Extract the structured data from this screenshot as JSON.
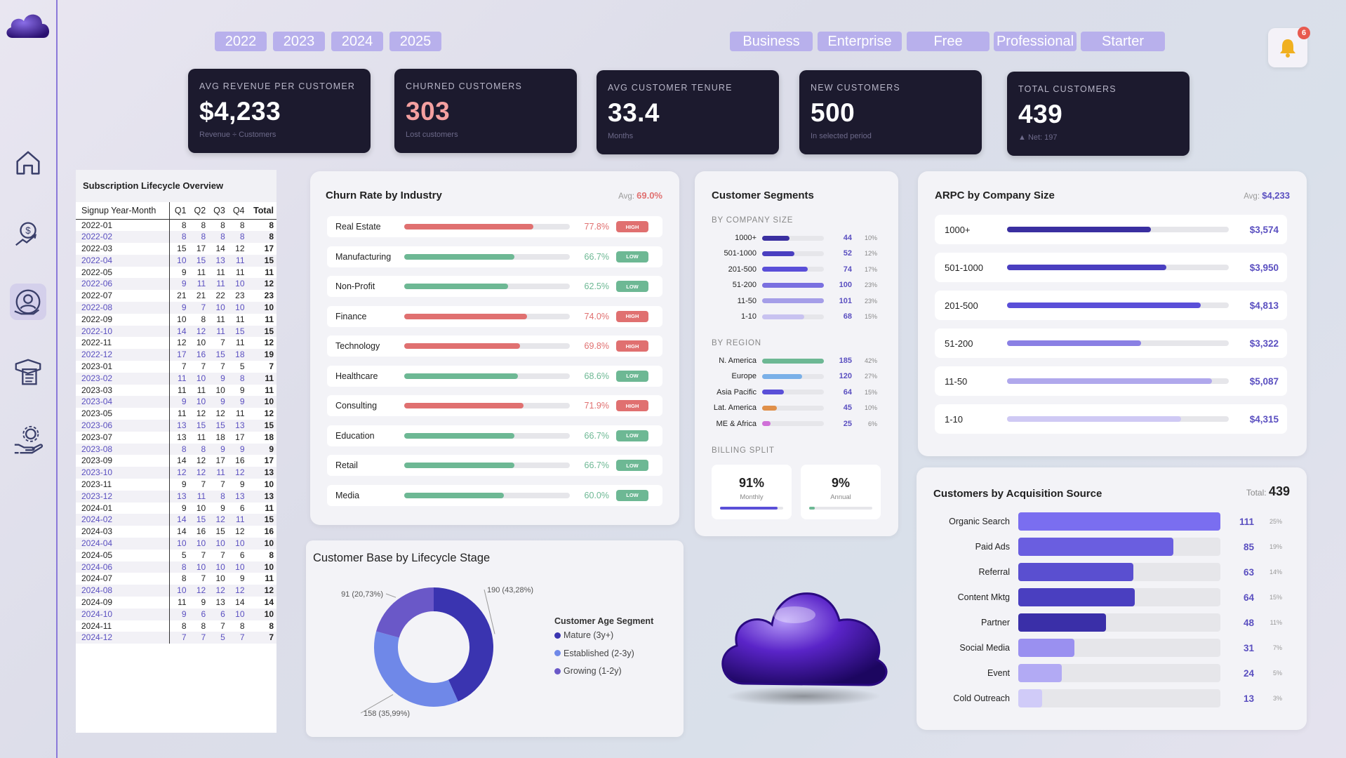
{
  "filters": {
    "years": [
      "2022",
      "2023",
      "2024",
      "2025"
    ],
    "plans": [
      "Business",
      "Enterprise",
      "Free",
      "Professional",
      "Starter"
    ]
  },
  "notifications": {
    "count": "6"
  },
  "kpis": [
    {
      "label": "AVG REVENUE PER CUSTOMER",
      "value": "$4,233",
      "sub": "Revenue ÷ Customers",
      "color": "#ffffff"
    },
    {
      "label": "CHURNED CUSTOMERS",
      "value": "303",
      "sub": "Lost customers",
      "color": "#f4a0a0"
    },
    {
      "label": "AVG CUSTOMER TENURE",
      "value": "33.4",
      "sub": "Months",
      "color": "#ffffff"
    },
    {
      "label": "NEW CUSTOMERS",
      "value": "500",
      "sub": "In selected period",
      "color": "#ffffff"
    },
    {
      "label": "TOTAL CUSTOMERS",
      "value": "439",
      "sub": "▲ Net: 197",
      "color": "#ffffff"
    }
  ],
  "lifecycle_table": {
    "title": "Subscription Lifecycle Overview",
    "headers": [
      "Signup Year-Month",
      "Q1",
      "Q2",
      "Q3",
      "Q4",
      "Total"
    ],
    "rows": [
      [
        "2022-01",
        "8",
        "8",
        "8",
        "8",
        "8"
      ],
      [
        "2022-02",
        "8",
        "8",
        "8",
        "8",
        "8"
      ],
      [
        "2022-03",
        "15",
        "17",
        "14",
        "12",
        "17"
      ],
      [
        "2022-04",
        "10",
        "15",
        "13",
        "11",
        "15"
      ],
      [
        "2022-05",
        "9",
        "11",
        "11",
        "11",
        "11"
      ],
      [
        "2022-06",
        "9",
        "11",
        "11",
        "10",
        "12"
      ],
      [
        "2022-07",
        "21",
        "21",
        "22",
        "23",
        "23"
      ],
      [
        "2022-08",
        "9",
        "7",
        "10",
        "10",
        "10"
      ],
      [
        "2022-09",
        "10",
        "8",
        "11",
        "11",
        "11"
      ],
      [
        "2022-10",
        "14",
        "12",
        "11",
        "15",
        "15"
      ],
      [
        "2022-11",
        "12",
        "10",
        "7",
        "11",
        "12"
      ],
      [
        "2022-12",
        "17",
        "16",
        "15",
        "18",
        "19"
      ],
      [
        "2023-01",
        "7",
        "7",
        "7",
        "5",
        "7"
      ],
      [
        "2023-02",
        "11",
        "10",
        "9",
        "8",
        "11"
      ],
      [
        "2023-03",
        "11",
        "11",
        "10",
        "9",
        "11"
      ],
      [
        "2023-04",
        "9",
        "10",
        "9",
        "9",
        "10"
      ],
      [
        "2023-05",
        "11",
        "12",
        "12",
        "11",
        "12"
      ],
      [
        "2023-06",
        "13",
        "15",
        "15",
        "13",
        "15"
      ],
      [
        "2023-07",
        "13",
        "11",
        "18",
        "17",
        "18"
      ],
      [
        "2023-08",
        "8",
        "8",
        "9",
        "9",
        "9"
      ],
      [
        "2023-09",
        "14",
        "12",
        "17",
        "16",
        "17"
      ],
      [
        "2023-10",
        "12",
        "12",
        "11",
        "12",
        "13"
      ],
      [
        "2023-11",
        "9",
        "7",
        "7",
        "9",
        "10"
      ],
      [
        "2023-12",
        "13",
        "11",
        "8",
        "13",
        "13"
      ],
      [
        "2024-01",
        "9",
        "10",
        "9",
        "6",
        "11"
      ],
      [
        "2024-02",
        "14",
        "15",
        "12",
        "11",
        "15"
      ],
      [
        "2024-03",
        "14",
        "16",
        "15",
        "12",
        "16"
      ],
      [
        "2024-04",
        "10",
        "10",
        "10",
        "10",
        "10"
      ],
      [
        "2024-05",
        "5",
        "7",
        "7",
        "6",
        "8"
      ],
      [
        "2024-06",
        "8",
        "10",
        "10",
        "10",
        "10"
      ],
      [
        "2024-07",
        "8",
        "7",
        "10",
        "9",
        "11"
      ],
      [
        "2024-08",
        "10",
        "12",
        "12",
        "12",
        "12"
      ],
      [
        "2024-09",
        "11",
        "9",
        "13",
        "14",
        "14"
      ],
      [
        "2024-10",
        "9",
        "6",
        "6",
        "10",
        "10"
      ],
      [
        "2024-11",
        "8",
        "8",
        "7",
        "8",
        "8"
      ],
      [
        "2024-12",
        "7",
        "7",
        "5",
        "7",
        "7"
      ]
    ]
  },
  "churn": {
    "title": "Churn Rate by Industry",
    "avg_label": "Avg:",
    "avg_value": "69.0%",
    "rows": [
      {
        "name": "Real Estate",
        "rate": 77.8,
        "pct": "77.8%",
        "tag": "HIGH"
      },
      {
        "name": "Manufacturing",
        "rate": 66.7,
        "pct": "66.7%",
        "tag": "LOW"
      },
      {
        "name": "Non-Profit",
        "rate": 62.5,
        "pct": "62.5%",
        "tag": "LOW"
      },
      {
        "name": "Finance",
        "rate": 74.0,
        "pct": "74.0%",
        "tag": "HIGH"
      },
      {
        "name": "Technology",
        "rate": 69.8,
        "pct": "69.8%",
        "tag": "HIGH"
      },
      {
        "name": "Healthcare",
        "rate": 68.6,
        "pct": "68.6%",
        "tag": "LOW"
      },
      {
        "name": "Consulting",
        "rate": 71.9,
        "pct": "71.9%",
        "tag": "HIGH"
      },
      {
        "name": "Education",
        "rate": 66.7,
        "pct": "66.7%",
        "tag": "LOW"
      },
      {
        "name": "Retail",
        "rate": 66.7,
        "pct": "66.7%",
        "tag": "LOW"
      },
      {
        "name": "Media",
        "rate": 60.0,
        "pct": "60.0%",
        "tag": "LOW"
      }
    ],
    "high_color": "#e07070",
    "low_color": "#6db894"
  },
  "segments": {
    "title": "Customer Segments",
    "company_size_label": "BY COMPANY SIZE",
    "company_size": [
      {
        "name": "1000+",
        "count": "44",
        "pct": "10%",
        "fill": 0.44,
        "color": "#3a2fa0"
      },
      {
        "name": "501-1000",
        "count": "52",
        "pct": "12%",
        "fill": 0.52,
        "color": "#4a3fc0"
      },
      {
        "name": "201-500",
        "count": "74",
        "pct": "17%",
        "fill": 0.74,
        "color": "#5a4fd8"
      },
      {
        "name": "51-200",
        "count": "100",
        "pct": "23%",
        "fill": 1.0,
        "color": "#7a70e0"
      },
      {
        "name": "11-50",
        "count": "101",
        "pct": "23%",
        "fill": 1.0,
        "color": "#a59ee8"
      },
      {
        "name": "1-10",
        "count": "68",
        "pct": "15%",
        "fill": 0.68,
        "color": "#c8c2f0"
      }
    ],
    "region_label": "BY REGION",
    "region": [
      {
        "name": "N. America",
        "count": "185",
        "pct": "42%",
        "fill": 1.0,
        "color": "#6db894"
      },
      {
        "name": "Europe",
        "count": "120",
        "pct": "27%",
        "fill": 0.65,
        "color": "#7ab0e8"
      },
      {
        "name": "Asia Pacific",
        "count": "64",
        "pct": "15%",
        "fill": 0.35,
        "color": "#5a4fd8"
      },
      {
        "name": "Lat. America",
        "count": "45",
        "pct": "10%",
        "fill": 0.24,
        "color": "#e0904a"
      },
      {
        "name": "ME & Africa",
        "count": "25",
        "pct": "6%",
        "fill": 0.14,
        "color": "#d070d8"
      }
    ],
    "billing_label": "BILLING SPLIT",
    "billing": [
      {
        "value": "91%",
        "label": "Monthly",
        "fill": 0.91,
        "color": "#5a4fd8"
      },
      {
        "value": "9%",
        "label": "Annual",
        "fill": 0.09,
        "color": "#6db894"
      }
    ]
  },
  "arpc": {
    "title": "ARPC by Company Size",
    "avg_label": "Avg:",
    "avg_value": "$4,233",
    "max_value": 5087,
    "rows": [
      {
        "name": "1000+",
        "value": 3574,
        "label": "$3,574",
        "color": "#3a2fa0"
      },
      {
        "name": "501-1000",
        "value": 3950,
        "label": "$3,950",
        "color": "#4a3fc0"
      },
      {
        "name": "201-500",
        "value": 4813,
        "label": "$4,813",
        "color": "#5a4fd8"
      },
      {
        "name": "51-200",
        "value": 3322,
        "label": "$3,322",
        "color": "#8a80e4"
      },
      {
        "name": "11-50",
        "value": 5087,
        "label": "$5,087",
        "color": "#b0a8ec"
      },
      {
        "name": "1-10",
        "value": 4315,
        "label": "$4,315",
        "color": "#cfc9f4"
      }
    ]
  },
  "acquisition": {
    "title": "Customers by Acquisition Source",
    "total_label": "Total:",
    "total_value": "439",
    "max_value": 111,
    "rows": [
      {
        "name": "Organic Search",
        "count": 111,
        "label": "111",
        "pct": "25%",
        "color": "#7a6ef0"
      },
      {
        "name": "Paid Ads",
        "count": 85,
        "label": "85",
        "pct": "19%",
        "color": "#6a5ee0"
      },
      {
        "name": "Referral",
        "count": 63,
        "label": "63",
        "pct": "14%",
        "color": "#5a4fd0"
      },
      {
        "name": "Content Mktg",
        "count": 64,
        "label": "64",
        "pct": "15%",
        "color": "#4a3fc0"
      },
      {
        "name": "Partner",
        "count": 48,
        "label": "48",
        "pct": "11%",
        "color": "#3a2fa8"
      },
      {
        "name": "Social Media",
        "count": 31,
        "label": "31",
        "pct": "7%",
        "color": "#9a90f0"
      },
      {
        "name": "Event",
        "count": 24,
        "label": "24",
        "pct": "5%",
        "color": "#b2aaf4"
      },
      {
        "name": "Cold Outreach",
        "count": 13,
        "label": "13",
        "pct": "3%",
        "color": "#d0cbf8"
      }
    ]
  },
  "lifecycle_donut": {
    "title": "Customer Base by Lifecycle Stage",
    "legend_title": "Customer Age Segment",
    "segments": [
      {
        "name": "Mature (3y+)",
        "value": 190,
        "label": "190 (43,28%)",
        "color": "#3a34b0"
      },
      {
        "name": "Established (2-3y)",
        "value": 158,
        "label": "158 (35,99%)",
        "color": "#6f88e8"
      },
      {
        "name": "Growing (1-2y)",
        "value": 91,
        "label": "91 (20,73%)",
        "color": "#6a58c8"
      }
    ]
  }
}
